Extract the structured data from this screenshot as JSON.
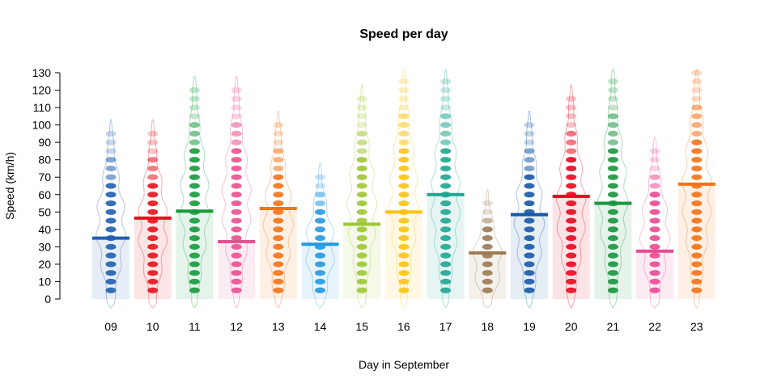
{
  "chart_data": {
    "type": "pirate",
    "title": "Speed per day",
    "xlabel": "Day in September",
    "ylabel": "Speed (km/h)",
    "ylim": [
      0,
      130
    ],
    "yticks": [
      0,
      10,
      20,
      30,
      40,
      50,
      60,
      70,
      80,
      90,
      100,
      110,
      120,
      130
    ],
    "grid": false,
    "legend": "none",
    "categories": [
      "09",
      "10",
      "11",
      "12",
      "13",
      "14",
      "15",
      "16",
      "17",
      "18",
      "19",
      "20",
      "21",
      "22",
      "23"
    ],
    "colors": [
      "#1f5fb0",
      "#e8121c",
      "#169a3d",
      "#e84f8f",
      "#f47216",
      "#2499e0",
      "#9ec634",
      "#fbc312",
      "#1ea68f",
      "#9a7a55",
      "#1559a8",
      "#e8071e",
      "#17963e",
      "#e94a90",
      "#f47216"
    ],
    "means": [
      35,
      46.5,
      50.5,
      33,
      52,
      31.5,
      43,
      50,
      60,
      26.5,
      48.5,
      59,
      55,
      27.5,
      66
    ],
    "ranges": [
      [
        5,
        95
      ],
      [
        5,
        95
      ],
      [
        5,
        120
      ],
      [
        5,
        120
      ],
      [
        5,
        100
      ],
      [
        5,
        70
      ],
      [
        5,
        115
      ],
      [
        5,
        125
      ],
      [
        5,
        125
      ],
      [
        5,
        55
      ],
      [
        5,
        100
      ],
      [
        5,
        115
      ],
      [
        5,
        125
      ],
      [
        5,
        85
      ],
      [
        5,
        130
      ]
    ]
  }
}
